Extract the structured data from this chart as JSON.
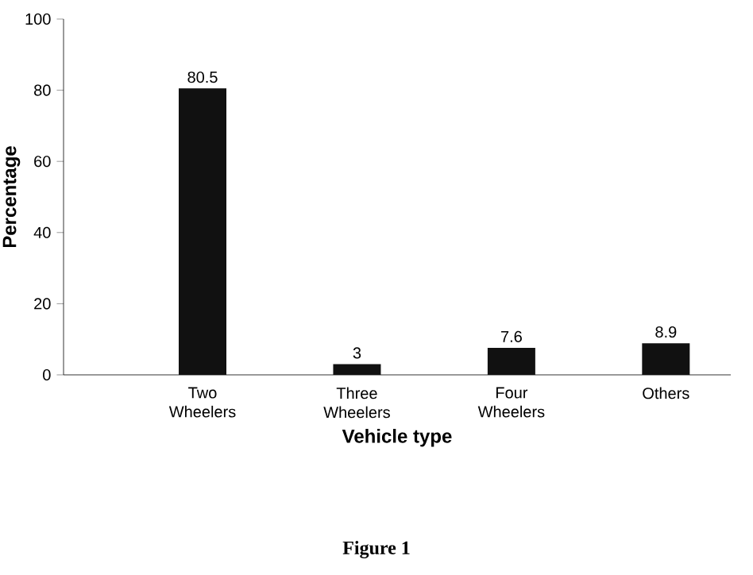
{
  "chart_data": {
    "type": "bar",
    "categories": [
      "Two Wheelers",
      "Three Wheelers",
      "Four Wheelers",
      "Others"
    ],
    "values": [
      80.5,
      3,
      7.6,
      8.9
    ],
    "color": "#111111",
    "data_labels": true,
    "ylim": [
      0,
      100
    ],
    "yticks": [
      0,
      20,
      40,
      60,
      80,
      100
    ],
    "xlabel": "Vehicle type",
    "ylabel": "Percentage",
    "annotations": [
      "Figure 1"
    ]
  }
}
